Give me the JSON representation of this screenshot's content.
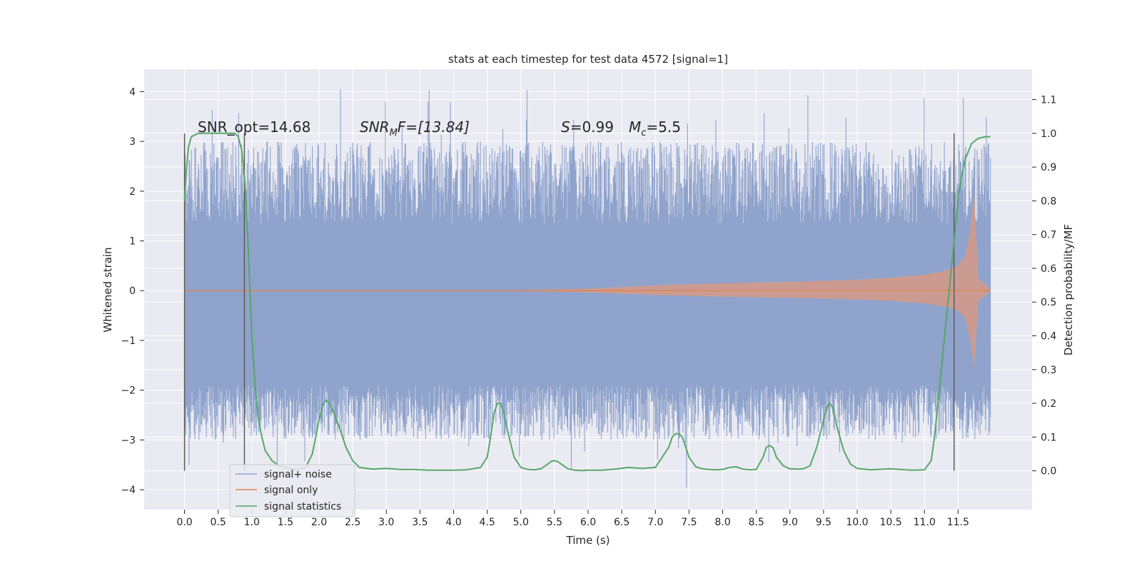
{
  "chart_data": {
    "type": "line",
    "title": "stats at each timestep for test data 4572 [signal=1]",
    "xlabel": "Time (s)",
    "ylabel": "Whitened strain",
    "y2label": "Detection probability/MF",
    "xlim": [
      -0.6,
      12.6
    ],
    "ylim": [
      -4.4,
      4.45
    ],
    "y2lim": [
      -0.115,
      1.19
    ],
    "x_ticks": [
      "0.0",
      "0.5",
      "1.0",
      "1.5",
      "2.0",
      "2.5",
      "3.0",
      "3.5",
      "4.0",
      "4.5",
      "5.0",
      "5.5",
      "6.0",
      "6.5",
      "7.0",
      "7.5",
      "8.0",
      "8.5",
      "9.0",
      "9.5",
      "10.0",
      "10.5",
      "11.0",
      "11.5"
    ],
    "y_ticks": [
      "4",
      "3",
      "2",
      "1",
      "0",
      "−1",
      "−2",
      "−3",
      "−4"
    ],
    "y2_ticks": [
      "1.1",
      "1.0",
      "0.9",
      "0.8",
      "0.7",
      "0.6",
      "0.5",
      "0.4",
      "0.3",
      "0.2",
      "0.1",
      "0.0"
    ],
    "grid": true,
    "legend_position": "lower-left",
    "annotations": {
      "snr_opt": "SNR_opt=14.68",
      "snr_mf_main": "SNR",
      "snr_mf_sub": "M",
      "snr_mf_rest": "F=[13.84]",
      "s_main": "S",
      "s_rest": "=0.99",
      "mc_main": "M",
      "mc_sub": "c",
      "mc_rest": "=5.5"
    },
    "vertical_markers": [
      0.0,
      0.89,
      11.44
    ],
    "series": [
      {
        "name": "signal+ noise",
        "color": "#8fa3cc",
        "x_range": [
          0.0,
          11.98
        ],
        "dense_band": [
          -1.9,
          1.35
        ],
        "typical_peaks": [
          -3.0,
          3.0
        ],
        "extreme_peaks": [
          -4.0,
          4.1
        ]
      },
      {
        "name": "signal only",
        "color": "#dd8452",
        "envelope": {
          "t": [
            0,
            5,
            6,
            7,
            8,
            9,
            10,
            10.5,
            11,
            11.3,
            11.5,
            11.6,
            11.68,
            11.74,
            11.8,
            11.98
          ],
          "amp": [
            0.01,
            0.01,
            0.04,
            0.11,
            0.15,
            0.18,
            0.22,
            0.26,
            0.32,
            0.4,
            0.5,
            0.68,
            1.2,
            1.95,
            0.25,
            0.02
          ]
        }
      },
      {
        "name": "signal statistics",
        "color": "#55a868",
        "axis": "right",
        "t": [
          0,
          0.03,
          0.06,
          0.1,
          0.15,
          0.2,
          0.3,
          0.4,
          0.5,
          0.6,
          0.7,
          0.75,
          0.8,
          0.85,
          0.9,
          0.95,
          1.0,
          1.05,
          1.1,
          1.15,
          1.2,
          1.3,
          1.4,
          1.5,
          1.6,
          1.7,
          1.8,
          1.9,
          1.95,
          2.0,
          2.05,
          2.1,
          2.15,
          2.2,
          2.3,
          2.4,
          2.5,
          2.6,
          2.8,
          3.0,
          3.2,
          3.4,
          3.6,
          3.8,
          4.0,
          4.2,
          4.4,
          4.5,
          4.55,
          4.6,
          4.65,
          4.7,
          4.75,
          4.8,
          4.85,
          4.9,
          5.0,
          5.1,
          5.2,
          5.3,
          5.4,
          5.45,
          5.5,
          5.55,
          5.6,
          5.7,
          5.8,
          5.9,
          6.0,
          6.2,
          6.4,
          6.6,
          6.8,
          7.0,
          7.1,
          7.2,
          7.25,
          7.3,
          7.35,
          7.4,
          7.45,
          7.5,
          7.6,
          7.7,
          7.8,
          7.9,
          8.0,
          8.1,
          8.2,
          8.3,
          8.4,
          8.5,
          8.6,
          8.65,
          8.7,
          8.75,
          8.8,
          8.9,
          9.0,
          9.1,
          9.2,
          9.3,
          9.4,
          9.5,
          9.55,
          9.6,
          9.65,
          9.7,
          9.8,
          9.9,
          10.0,
          10.2,
          10.5,
          10.8,
          11.0,
          11.1,
          11.15,
          11.2,
          11.3,
          11.4,
          11.5,
          11.55,
          11.6,
          11.7,
          11.8,
          11.9,
          11.98
        ],
        "prob": [
          0.8,
          0.9,
          0.96,
          0.99,
          0.995,
          1.0,
          1.0,
          1.0,
          1.0,
          1.0,
          1.0,
          1.0,
          0.99,
          0.95,
          0.85,
          0.65,
          0.4,
          0.25,
          0.15,
          0.1,
          0.06,
          0.03,
          0.015,
          0.01,
          0.005,
          0.005,
          0.01,
          0.05,
          0.1,
          0.15,
          0.19,
          0.21,
          0.2,
          0.18,
          0.13,
          0.07,
          0.03,
          0.01,
          0.005,
          0.007,
          0.004,
          0.004,
          0.002,
          0.002,
          0.002,
          0.003,
          0.01,
          0.04,
          0.1,
          0.17,
          0.2,
          0.2,
          0.17,
          0.12,
          0.08,
          0.04,
          0.01,
          0.004,
          0.003,
          0.006,
          0.02,
          0.028,
          0.03,
          0.027,
          0.02,
          0.006,
          0.002,
          0.001,
          0.002,
          0.002,
          0.005,
          0.01,
          0.007,
          0.01,
          0.04,
          0.07,
          0.1,
          0.11,
          0.11,
          0.1,
          0.07,
          0.04,
          0.012,
          0.006,
          0.004,
          0.003,
          0.004,
          0.01,
          0.012,
          0.005,
          0.003,
          0.004,
          0.04,
          0.07,
          0.075,
          0.068,
          0.04,
          0.015,
          0.006,
          0.005,
          0.006,
          0.015,
          0.07,
          0.15,
          0.19,
          0.2,
          0.18,
          0.13,
          0.06,
          0.02,
          0.007,
          0.003,
          0.006,
          0.002,
          0.003,
          0.03,
          0.1,
          0.2,
          0.4,
          0.6,
          0.8,
          0.87,
          0.92,
          0.97,
          0.985,
          0.99,
          0.99
        ]
      }
    ]
  }
}
